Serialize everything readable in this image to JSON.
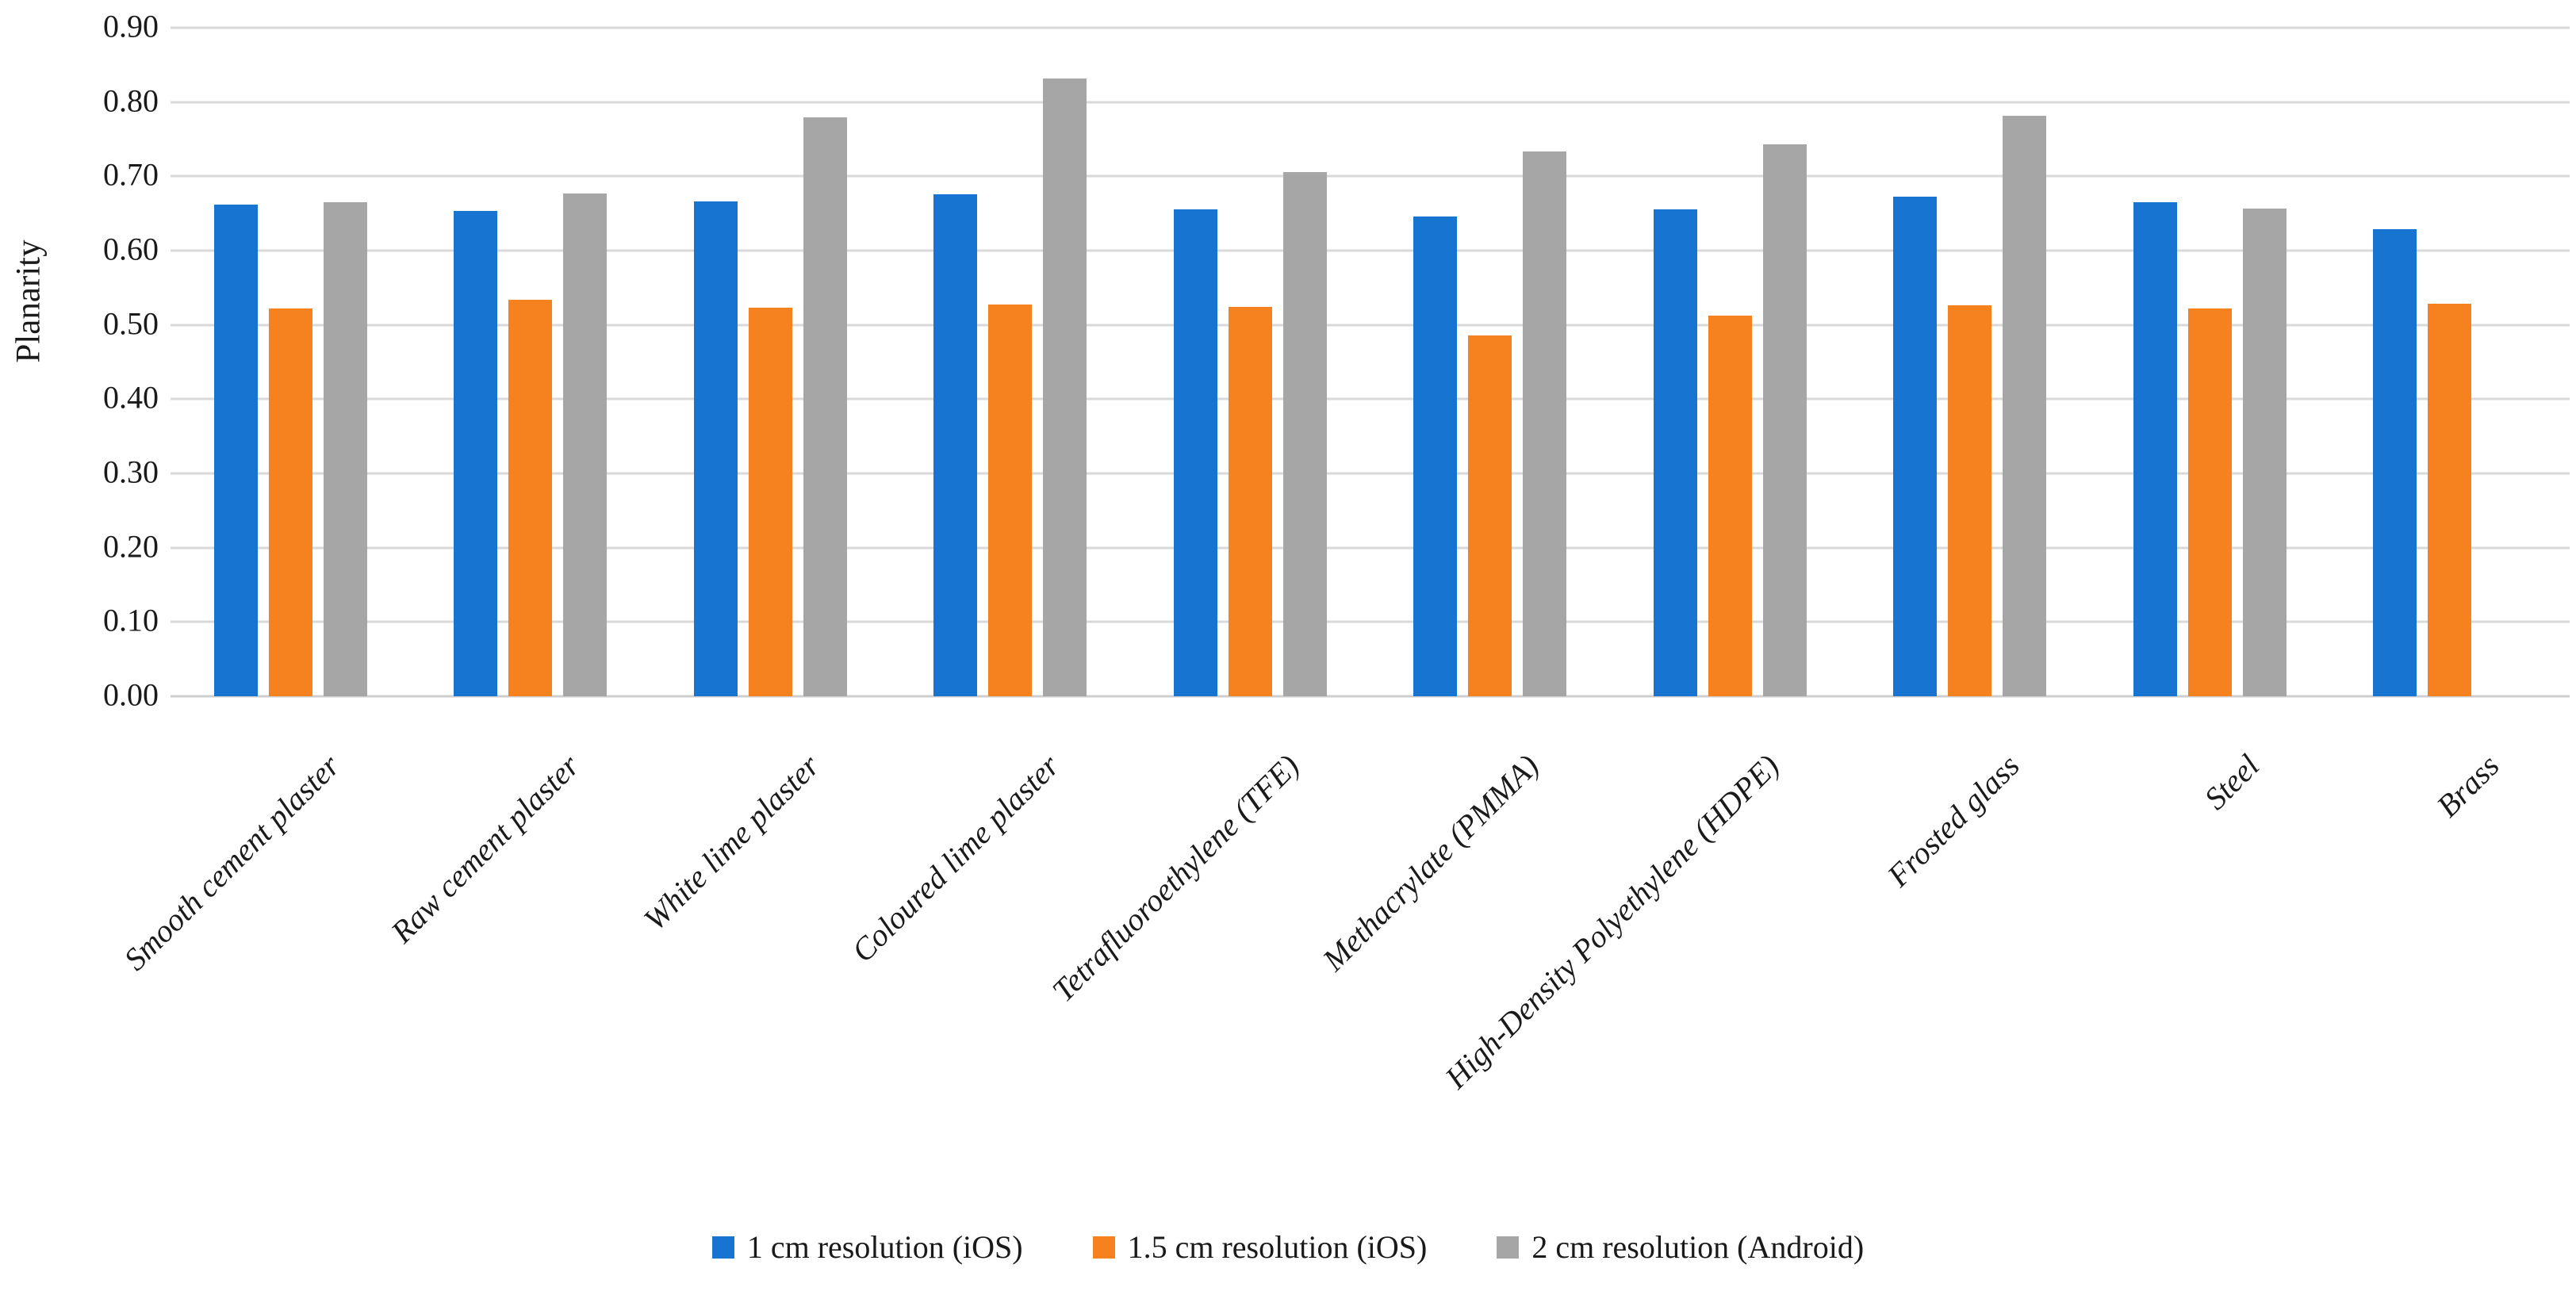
{
  "figure": {
    "y_axis": {
      "title": "Planarity",
      "ticks": [
        "0.90",
        "0.80",
        "0.70",
        "0.60",
        "0.50",
        "0.40",
        "0.30",
        "0.20",
        "0.10",
        "0.00"
      ]
    },
    "colors": {
      "series1": "#1774d1",
      "series2": "#f5821f",
      "series3": "#a6a6a6",
      "gridline": "#d9d9d9"
    }
  },
  "chart_data": {
    "type": "bar",
    "title": "",
    "xlabel": "",
    "ylabel": "Planarity",
    "ylim": [
      0,
      0.9
    ],
    "ytick_step": 0.1,
    "grid": true,
    "legend_position": "bottom",
    "categories": [
      "Smooth cement plaster",
      "Raw cement plaster",
      "White lime plaster",
      "Coloured lime plaster",
      "Tetrafluoroethylene (TFE)",
      "Methacrylate (PMMA)",
      "High-Density Polyethylene (HDPE)",
      "Frosted glass",
      "Steel",
      "Brass"
    ],
    "series": [
      {
        "name": "1 cm resolution (iOS)",
        "color": "#1774d1",
        "values": [
          0.662,
          0.653,
          0.666,
          0.676,
          0.655,
          0.646,
          0.655,
          0.673,
          0.665,
          0.629
        ]
      },
      {
        "name": "1.5 cm resolution (iOS)",
        "color": "#f5821f",
        "values": [
          0.522,
          0.534,
          0.523,
          0.527,
          0.524,
          0.486,
          0.513,
          0.526,
          0.522,
          0.529
        ]
      },
      {
        "name": "2 cm resolution (Android)",
        "color": "#a6a6a6",
        "values": [
          0.665,
          0.677,
          0.779,
          0.832,
          0.706,
          0.734,
          0.743,
          0.781,
          0.657,
          null
        ]
      }
    ]
  }
}
